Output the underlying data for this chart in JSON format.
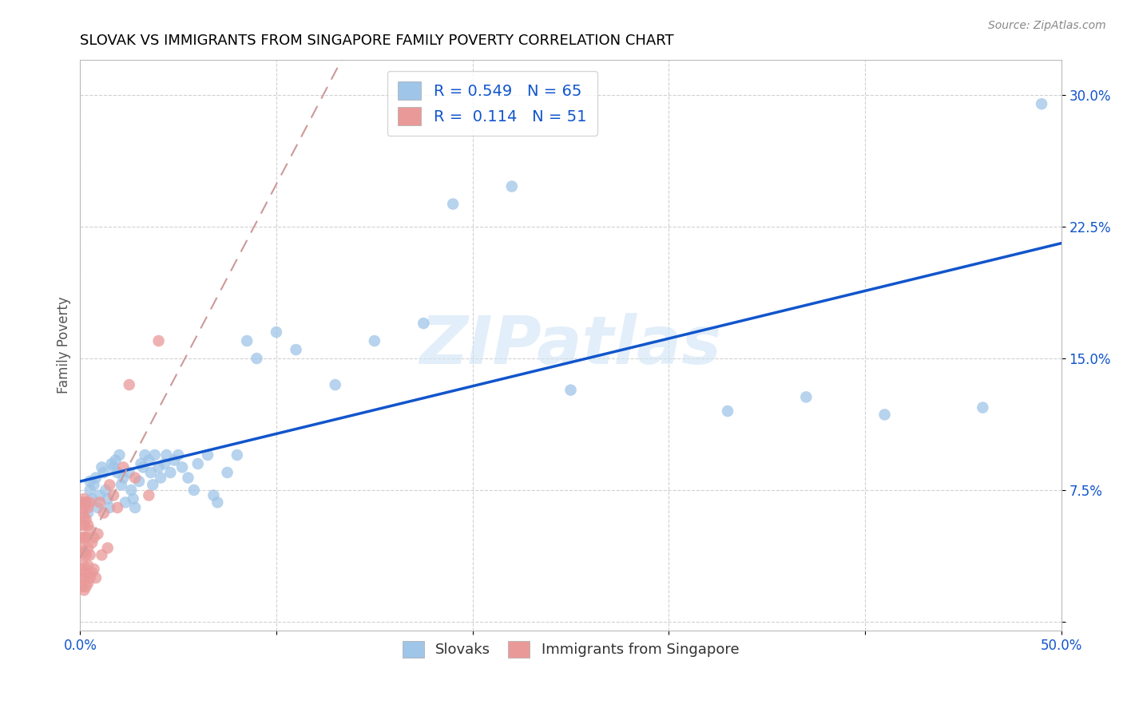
{
  "title": "SLOVAK VS IMMIGRANTS FROM SINGAPORE FAMILY POVERTY CORRELATION CHART",
  "source": "Source: ZipAtlas.com",
  "ylabel": "Family Poverty",
  "xlim": [
    0.0,
    0.5
  ],
  "ylim": [
    -0.005,
    0.32
  ],
  "xticks": [
    0.0,
    0.1,
    0.2,
    0.3,
    0.4,
    0.5
  ],
  "xticklabels": [
    "0.0%",
    "",
    "",
    "",
    "",
    "50.0%"
  ],
  "yticks": [
    0.0,
    0.075,
    0.15,
    0.225,
    0.3
  ],
  "yticklabels": [
    "",
    "7.5%",
    "15.0%",
    "22.5%",
    "30.0%"
  ],
  "legend_R1": "0.549",
  "legend_N1": "65",
  "legend_R2": "0.114",
  "legend_N2": "51",
  "color_blue": "#9fc5e8",
  "color_pink": "#ea9999",
  "color_blue_line": "#1155cc",
  "color_pink_dashed": "#cc9999",
  "watermark_text": "ZIPatlas",
  "watermark_color": "#d0e4f5",
  "grid_color": "#cccccc",
  "title_color": "#000000",
  "axis_label_color": "#1155cc",
  "legend_label_color": "#1155cc",
  "slovaks_x": [
    0.003,
    0.004,
    0.005,
    0.005,
    0.006,
    0.007,
    0.008,
    0.009,
    0.01,
    0.011,
    0.012,
    0.013,
    0.014,
    0.015,
    0.016,
    0.017,
    0.018,
    0.019,
    0.02,
    0.021,
    0.022,
    0.023,
    0.025,
    0.026,
    0.027,
    0.028,
    0.03,
    0.031,
    0.032,
    0.033,
    0.035,
    0.036,
    0.037,
    0.038,
    0.04,
    0.041,
    0.043,
    0.044,
    0.046,
    0.048,
    0.05,
    0.052,
    0.055,
    0.058,
    0.06,
    0.065,
    0.068,
    0.07,
    0.075,
    0.08,
    0.085,
    0.09,
    0.1,
    0.11,
    0.13,
    0.15,
    0.175,
    0.19,
    0.22,
    0.25,
    0.33,
    0.37,
    0.41,
    0.46,
    0.49
  ],
  "slovaks_y": [
    0.068,
    0.062,
    0.075,
    0.08,
    0.07,
    0.078,
    0.082,
    0.065,
    0.072,
    0.088,
    0.085,
    0.075,
    0.07,
    0.065,
    0.09,
    0.088,
    0.092,
    0.085,
    0.095,
    0.078,
    0.082,
    0.068,
    0.085,
    0.075,
    0.07,
    0.065,
    0.08,
    0.09,
    0.088,
    0.095,
    0.092,
    0.085,
    0.078,
    0.095,
    0.088,
    0.082,
    0.09,
    0.095,
    0.085,
    0.092,
    0.095,
    0.088,
    0.082,
    0.075,
    0.09,
    0.095,
    0.072,
    0.068,
    0.085,
    0.095,
    0.16,
    0.15,
    0.165,
    0.155,
    0.135,
    0.16,
    0.17,
    0.238,
    0.248,
    0.132,
    0.12,
    0.128,
    0.118,
    0.122,
    0.295
  ],
  "singapore_x": [
    0.001,
    0.001,
    0.001,
    0.001,
    0.001,
    0.001,
    0.001,
    0.001,
    0.001,
    0.002,
    0.002,
    0.002,
    0.002,
    0.002,
    0.002,
    0.002,
    0.002,
    0.002,
    0.003,
    0.003,
    0.003,
    0.003,
    0.003,
    0.003,
    0.004,
    0.004,
    0.004,
    0.004,
    0.004,
    0.005,
    0.005,
    0.005,
    0.005,
    0.006,
    0.006,
    0.007,
    0.007,
    0.008,
    0.009,
    0.01,
    0.011,
    0.012,
    0.014,
    0.015,
    0.017,
    0.019,
    0.022,
    0.025,
    0.028,
    0.035,
    0.04
  ],
  "singapore_y": [
    0.02,
    0.025,
    0.03,
    0.038,
    0.042,
    0.048,
    0.055,
    0.062,
    0.068,
    0.018,
    0.025,
    0.032,
    0.04,
    0.048,
    0.055,
    0.06,
    0.065,
    0.07,
    0.02,
    0.028,
    0.038,
    0.048,
    0.058,
    0.068,
    0.022,
    0.032,
    0.042,
    0.055,
    0.065,
    0.025,
    0.038,
    0.052,
    0.068,
    0.028,
    0.045,
    0.03,
    0.048,
    0.025,
    0.05,
    0.068,
    0.038,
    0.062,
    0.042,
    0.078,
    0.072,
    0.065,
    0.088,
    0.135,
    0.082,
    0.072,
    0.16
  ]
}
